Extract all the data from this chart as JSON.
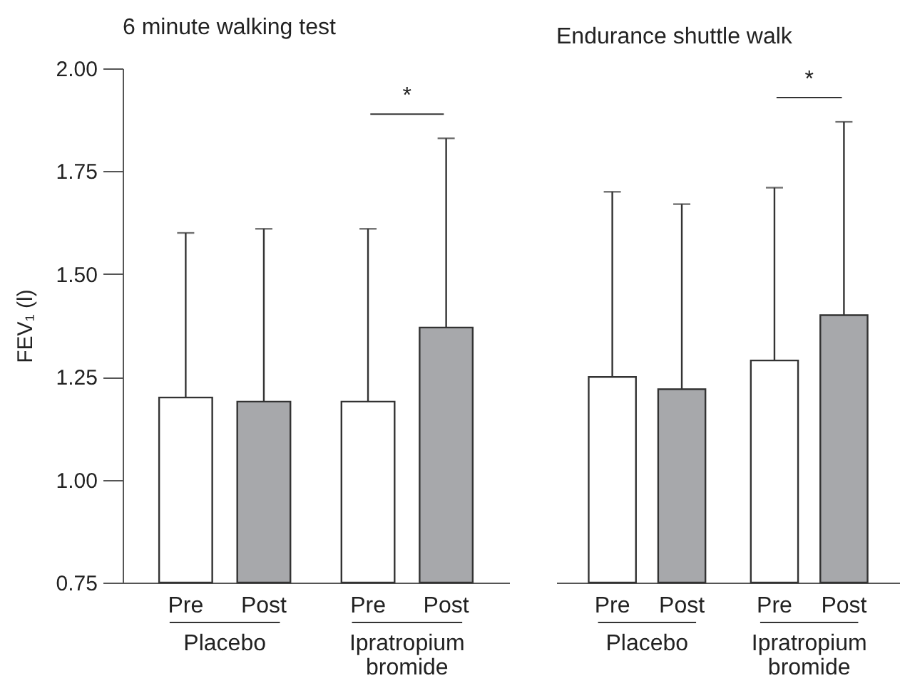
{
  "chart_data": [
    {
      "type": "bar",
      "title": "6 minute walking test",
      "ylabel": "FEV₁ (l)",
      "categories": [
        "Placebo",
        "Ipratropium bromide"
      ],
      "series": [
        {
          "name": "Pre",
          "color": "#ffffff",
          "values": [
            1.2,
            1.19
          ],
          "errors": [
            [
              1.2,
              1.6
            ],
            [
              1.19,
              1.61
            ]
          ]
        },
        {
          "name": "Post",
          "color": "#a7a8ab",
          "values": [
            1.19,
            1.37
          ],
          "errors": [
            [
              1.19,
              1.61
            ],
            [
              1.37,
              1.83
            ]
          ]
        }
      ],
      "ylim": [
        0.75,
        2
      ],
      "yticks": [
        {
          "value": 0.75,
          "label": "0.75"
        },
        {
          "value": 1,
          "label": "1.00"
        },
        {
          "value": 1.25,
          "label": "1.25"
        },
        {
          "value": 1.5,
          "label": "1.50"
        },
        {
          "value": 1.75,
          "label": "1.75"
        },
        {
          "value": 2,
          "label": "2.00"
        }
      ],
      "annotations": [
        "*"
      ],
      "grid": false,
      "legend": false
    },
    {
      "type": "bar",
      "title": "Endurance shuttle walk",
      "categories": [
        "Placebo",
        "Ipratropium bromide"
      ],
      "series": [
        {
          "name": "Pre",
          "color": "#ffffff",
          "values": [
            1.25,
            1.29
          ],
          "errors": [
            [
              1.25,
              1.7
            ],
            [
              1.29,
              1.71
            ]
          ]
        },
        {
          "name": "Post",
          "color": "#a7a8ab",
          "values": [
            1.22,
            1.4
          ],
          "errors": [
            [
              1.22,
              1.67
            ],
            [
              1.4,
              1.87
            ]
          ]
        }
      ],
      "ylim": [
        0.75,
        2
      ],
      "annotations": [
        "*"
      ],
      "grid": false,
      "legend": false,
      "tick_labels": "x"
    }
  ]
}
